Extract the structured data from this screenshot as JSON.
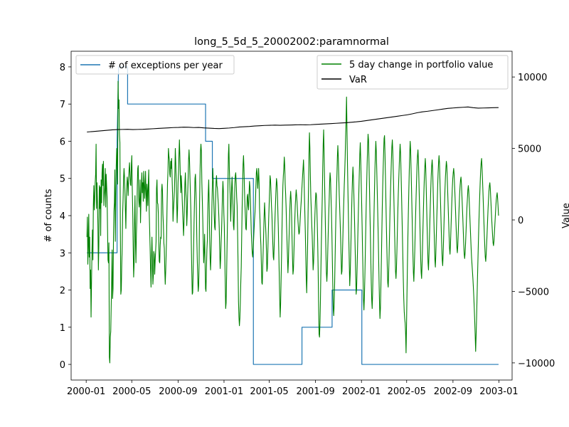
{
  "chart_data": {
    "type": "line",
    "title": "long_5_5d_5_20002002:paramnormal",
    "xlabel": "",
    "x_ticks": [
      "2000-01",
      "2000-05",
      "2000-09",
      "2001-01",
      "2001-05",
      "2001-09",
      "2002-01",
      "2002-05",
      "2002-09",
      "2003-01"
    ],
    "x_range": [
      "1999-11-22",
      "2003-02-05"
    ],
    "left_axis": {
      "label": "# of counts",
      "ylim": [
        -0.42,
        8.42
      ],
      "ticks": [
        0,
        1,
        2,
        3,
        4,
        5,
        6,
        7,
        8
      ]
    },
    "right_axis": {
      "label": "Value",
      "ylim": [
        -11200,
        11800
      ],
      "ticks": [
        -10000,
        -5000,
        0,
        5000,
        10000
      ],
      "tick_labels": [
        "−10000",
        "−5000",
        "0",
        "5000",
        "10000"
      ]
    },
    "series": [
      {
        "name": "# of exceptions per year",
        "axis": "left",
        "color": "#1f77b4",
        "style": "step",
        "points": [
          [
            "2000-01-03",
            3
          ],
          [
            "2000-03-23",
            3
          ],
          [
            "2000-03-23",
            6
          ],
          [
            "2000-03-27",
            8
          ],
          [
            "2000-04-20",
            8
          ],
          [
            "2000-04-20",
            7
          ],
          [
            "2000-11-13",
            7
          ],
          [
            "2000-11-13",
            6
          ],
          [
            "2000-12-01",
            6
          ],
          [
            "2000-12-01",
            5
          ],
          [
            "2001-03-20",
            5
          ],
          [
            "2001-03-20",
            0
          ],
          [
            "2001-07-27",
            0
          ],
          [
            "2001-07-27",
            1
          ],
          [
            "2001-10-15",
            1
          ],
          [
            "2001-10-15",
            2
          ],
          [
            "2002-01-02",
            2
          ],
          [
            "2002-01-02",
            0
          ],
          [
            "2002-12-31",
            0
          ]
        ]
      },
      {
        "name": "5 day change in portfolio value",
        "axis": "right",
        "color": "#008000",
        "style": "line",
        "start": "2000-01-03",
        "end": "2002-12-31",
        "values": [
          -1200,
          200,
          -3100,
          -1800,
          400,
          -2600,
          -1200,
          -4800,
          -3500,
          -6800,
          -4400,
          -2100,
          -700,
          -2800,
          1000,
          2400,
          700,
          1400,
          2600,
          3200,
          5300,
          800,
          2600,
          1200,
          -400,
          -3500,
          -1800,
          2400,
          800,
          2300,
          -1100,
          2800,
          1200,
          3300,
          3900,
          2400,
          4100,
          1000,
          1700,
          2200,
          3600,
          900,
          3200,
          2400,
          1600,
          -600,
          -2800,
          -3000,
          -1600,
          -9600,
          -10000,
          -8200,
          -7800,
          -6000,
          -4300,
          -2100,
          -5500,
          -4800,
          -1200,
          600,
          1200,
          3500,
          -1500,
          1700,
          3800,
          5000,
          4100,
          2500,
          9700,
          7800,
          8400,
          6000,
          5400,
          -800,
          -5200,
          -4900,
          -3200,
          -1900,
          500,
          1500,
          2900,
          3600,
          3000,
          1900,
          700,
          -600,
          1400,
          2300,
          3000,
          2600,
          1700,
          2800,
          3500,
          4000,
          3200,
          2500,
          2400,
          3800,
          4500,
          2200,
          600,
          -1900,
          -4000,
          -3100,
          0,
          1700,
          -1500,
          -3000,
          -1000,
          0,
          2400,
          3600,
          3800,
          1600,
          900,
          1300,
          2800,
          -200,
          1400,
          2500,
          3300,
          1900,
          2600,
          1300,
          3400,
          2700,
          1500,
          2200,
          3400,
          1700,
          600,
          2500,
          2000,
          1000,
          2600,
          3500,
          600,
          -700,
          -2000,
          -3500,
          -4700,
          -2600,
          -1200,
          -2800,
          -4500,
          -3900,
          -2200,
          -2400,
          -3800,
          -2900,
          -2200,
          -1500,
          2200,
          2800,
          1200,
          1100,
          400,
          -1800,
          -2900,
          -3000,
          -1800,
          -1200,
          -1300,
          2000,
          2500,
          2000,
          400,
          -400,
          -1600,
          -2000,
          -3500,
          -4500,
          -3600,
          -2400,
          -1100,
          1000,
          2600,
          3400,
          5000,
          4500,
          4200,
          3200,
          3000,
          4100,
          3600,
          4300,
          2900,
          1800,
          -100,
          700,
          1300,
          2000,
          3300,
          5000,
          4000,
          2700,
          1300,
          -200,
          800,
          2600,
          3400,
          4600,
          5600,
          4400,
          3000,
          1900,
          3100,
          2400,
          1500,
          600,
          -200,
          -1100,
          -200,
          1300,
          2600,
          3300,
          2000,
          1300,
          -400,
          400,
          1800,
          2900,
          4200,
          4900,
          4200,
          3000,
          1800,
          600,
          -1700,
          -3600,
          -5200,
          -5100,
          -3600,
          -2000,
          -100,
          1400,
          2900,
          3200,
          2100,
          800,
          -1300,
          -2800,
          -4000,
          -5000,
          -4600,
          -3000,
          1200,
          3300,
          4800,
          5300,
          4800,
          2600,
          1400,
          0,
          -1500,
          -3000,
          -2200,
          -1000,
          -3000,
          -4800,
          -5000,
          -3400,
          -2100,
          -1400,
          600,
          1900,
          2800,
          1100,
          -1200,
          -2700,
          -3500,
          -2400,
          -1000,
          1000,
          2500,
          3600,
          2500,
          1300,
          300,
          -500,
          -700,
          1300,
          2700,
          3100,
          2400,
          2200,
          1600,
          1100,
          300,
          -600,
          -2100,
          -3400,
          -2800,
          -1600,
          -800,
          400,
          1800,
          2700,
          2000,
          500,
          -400,
          -2300,
          -4300,
          -6200,
          -5800,
          -4000,
          -1900,
          0,
          2600,
          4600,
          5300,
          3600,
          2600,
          1500,
          -100,
          1000,
          2300,
          3000,
          1800,
          1000,
          -400,
          -700,
          600,
          2400,
          3100,
          3300,
          2600,
          1600,
          1000,
          -800,
          -2900,
          -5700,
          -6800,
          -7400,
          -6900,
          -5800,
          -4400,
          -3300,
          -1200,
          900,
          2300,
          3900,
          4500,
          3600,
          2200,
          1100,
          300,
          -600,
          -700,
          500,
          1600,
          1800,
          1000,
          700,
          1700,
          2700,
          2300,
          1500,
          300,
          -900,
          -1600,
          -2300,
          -2600,
          -2100,
          -1400,
          -700,
          0,
          500,
          1300,
          2300,
          3300,
          3600,
          3000,
          2200,
          2900,
          3600,
          2600,
          800,
          0,
          -1100,
          -1800,
          -3100,
          -4400,
          -4500,
          -3200,
          -2100,
          -900,
          300,
          1200,
          400,
          -300,
          -1000,
          -2100,
          -3600,
          -3400,
          -2300,
          -1100,
          100,
          1100,
          2100,
          3100,
          2800,
          2000,
          1000,
          400,
          -700,
          -1700,
          -2600,
          -2800,
          -1800,
          -700,
          400,
          1300,
          2200,
          2900,
          2600,
          1900,
          600,
          -600,
          -2200,
          -3800,
          -5500,
          -6800,
          -5900,
          -4300,
          -2600,
          -700,
          1100,
          2400,
          3100,
          3600,
          4400,
          3800,
          2500,
          1800,
          900,
          -400,
          -1500,
          -2600,
          -3700,
          -2900,
          -1700,
          -600,
          600,
          1500,
          2000,
          1400,
          300,
          -1300,
          -2700,
          -3800,
          -3500,
          -2400,
          -1200,
          0,
          1000,
          1600,
          2100,
          1700,
          1200,
          500,
          -100,
          -600,
          -1000,
          -900,
          -400,
          200,
          800,
          1300,
          1900,
          2500,
          3100,
          3600,
          4200,
          3200,
          1700,
          400,
          -900,
          -2500,
          -4100,
          -5100,
          -3500,
          -1700,
          500,
          2300,
          4600,
          6100,
          5000,
          3100,
          1600,
          700,
          -300,
          -1100,
          -2300,
          -3500,
          -3000,
          -1900,
          -700,
          400,
          1300,
          1900,
          1800,
          1000,
          -200,
          -1600,
          -3500,
          -6000,
          -8000,
          -8200,
          -7200,
          -5600,
          -3500,
          -1600,
          0,
          1600,
          3600,
          5300,
          6300,
          4700,
          2700,
          1100,
          -700,
          -2300,
          -3700,
          -4300,
          -3600,
          -2200,
          -900,
          300,
          1300,
          2500,
          3300,
          2900,
          1700,
          600,
          -900,
          -2800,
          -4600,
          -6200,
          -6700,
          -5900,
          -4500,
          -2700,
          -900,
          700,
          1900,
          3100,
          4400,
          5200,
          4400,
          3100,
          1800,
          900,
          -100,
          -1200,
          -2400,
          -3800,
          -3600,
          -2500,
          -1200,
          200,
          1300,
          2400,
          3300,
          4400,
          5800,
          7000,
          8600,
          6300,
          4000,
          2100,
          400,
          -1300,
          -3100,
          -4600,
          -3800,
          -2500,
          -1000,
          500,
          1800,
          2900,
          3700,
          3000,
          1800,
          600,
          -800,
          -2300,
          -3900,
          -5200,
          -4800,
          -3500,
          -2100,
          -600,
          800,
          2100,
          3400,
          4600,
          5400,
          4200,
          2700,
          1200,
          -400,
          -2200,
          -3800,
          -5600,
          -6300,
          -5400,
          -4000,
          -2300,
          -600,
          1100,
          2500,
          3900,
          5100,
          6000,
          5600,
          4100,
          2400,
          700,
          -900,
          -2700,
          -4400,
          -5600,
          -6200,
          -5100,
          -3400,
          -1500,
          400,
          2000,
          3500,
          4600,
          5500,
          4800,
          3500,
          2100,
          700,
          -800,
          -2500,
          -4200,
          -5800,
          -6900,
          -6200,
          -4700,
          -3000,
          -1100,
          800,
          2300,
          3600,
          4700,
          5700,
          5900,
          4600,
          3000,
          1300,
          -400,
          -1900,
          -3300,
          -4400,
          -4700,
          -3700,
          -2400,
          -900,
          700,
          2000,
          3100,
          4200,
          5100,
          5600,
          4800,
          3500,
          2100,
          600,
          -900,
          -2300,
          -3600,
          -4100,
          -3400,
          -2200,
          -800,
          600,
          1800,
          2800,
          3700,
          4600,
          5300,
          4700,
          3400,
          2000,
          500,
          -1000,
          -2600,
          -4200,
          -5500,
          -6400,
          -6900,
          -7200,
          -7900,
          -9300,
          -7400,
          -5200,
          -3100,
          -1200,
          500,
          2000,
          3400,
          4600,
          5500,
          4900,
          3500,
          2100,
          600,
          -900,
          -2400,
          -3700,
          -4300,
          -3300,
          -2200,
          -800,
          500,
          1700,
          2800,
          3800,
          4500,
          4900,
          4200,
          2900,
          1500,
          100,
          -1400,
          -2800,
          -3700,
          -4100,
          -3100,
          -1900,
          -500,
          800,
          2000,
          3000,
          3700,
          4300,
          3600,
          2300,
          900,
          -500,
          -1800,
          -3000,
          -3500,
          -2500,
          -1400,
          -100,
          1100,
          2200,
          3100,
          3800,
          4200,
          3600,
          2300,
          1000,
          -300,
          -1600,
          -2800,
          -3300,
          -2400,
          -1200,
          0,
          1100,
          2300,
          3300,
          4000,
          4500,
          4000,
          2800,
          1600,
          400,
          -800,
          -1900,
          -2800,
          -3200,
          -2400,
          -1300,
          -100,
          1100,
          2100,
          3000,
          3600,
          4100,
          3800,
          2900,
          1900,
          900,
          -100,
          -1100,
          -2000,
          -2400,
          -1700,
          -700,
          300,
          1300,
          2200,
          2900,
          3300,
          3600,
          3200,
          2400,
          1600,
          700,
          -200,
          -1100,
          -1900,
          -2300,
          -1800,
          -900,
          100,
          1000,
          1800,
          2400,
          2800,
          3000,
          2500,
          1700,
          900,
          100,
          -800,
          -1700,
          -2400,
          -2700,
          -2300,
          -1600,
          -800,
          100,
          900,
          1500,
          2100,
          2400,
          2000,
          1300,
          500,
          -300,
          -1100,
          -1900,
          -2600,
          -3100,
          -3600,
          -4100,
          -4700,
          -5400,
          -6200,
          -7100,
          -8100,
          -9200,
          -8100,
          -6900,
          -5500,
          -4100,
          -2800,
          -1500,
          -300,
          800,
          1800,
          2700,
          3500,
          4000,
          4300,
          3600,
          2800,
          1900,
          900,
          -100,
          -1000,
          -1900,
          -2600,
          -2900,
          -2400,
          -1700,
          -900,
          -100,
          700,
          1400,
          2000,
          2400,
          2600,
          2200,
          1500,
          800,
          100,
          -500,
          -1100,
          -1600,
          -1800,
          -1500,
          -900,
          -300,
          300,
          900,
          1400,
          1700,
          1900,
          1500,
          900,
          300
        ]
      },
      {
        "name": "VaR",
        "axis": "right",
        "color": "#000000",
        "style": "line",
        "start": "2000-01-03",
        "end": "2002-12-31",
        "values": [
          6150,
          6180,
          6210,
          6240,
          6270,
          6300,
          6320,
          6330,
          6340,
          6320,
          6330,
          6340,
          6360,
          6380,
          6400,
          6420,
          6440,
          6460,
          6470,
          6490,
          6480,
          6460,
          6470,
          6440,
          6420,
          6400,
          6390,
          6410,
          6430,
          6460,
          6500,
          6520,
          6540,
          6570,
          6590,
          6610,
          6620,
          6630,
          6620,
          6630,
          6640,
          6650,
          6660,
          6650,
          6660,
          6680,
          6700,
          6720,
          6740,
          6760,
          6780,
          6800,
          6830,
          6860,
          6900,
          6950,
          7000,
          7050,
          7100,
          7150,
          7200,
          7250,
          7300,
          7350,
          7420,
          7500,
          7560,
          7600,
          7650,
          7700,
          7750,
          7800,
          7830,
          7860,
          7880,
          7900,
          7850,
          7820,
          7830,
          7840,
          7850,
          7860
        ]
      }
    ]
  }
}
